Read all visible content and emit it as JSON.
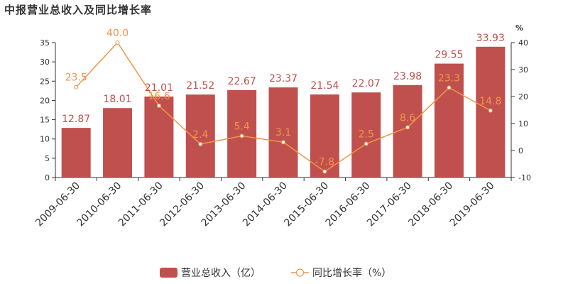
{
  "chart_data": {
    "type": "bar",
    "title": "中报营业总收入及同比增长率",
    "categories": [
      "2009-06-30",
      "2010-06-30",
      "2011-06-30",
      "2012-06-30",
      "2013-06-30",
      "2014-06-30",
      "2015-06-30",
      "2016-06-30",
      "2017-06-30",
      "2018-06-30",
      "2019-06-30"
    ],
    "series": [
      {
        "name": "营业总收入（亿）",
        "type": "bar",
        "axis": "left",
        "color": "#c0504d",
        "values": [
          12.87,
          18.01,
          21.01,
          21.52,
          22.67,
          23.37,
          21.54,
          22.07,
          23.98,
          29.55,
          33.93
        ]
      },
      {
        "name": "同比增长率（%）",
        "type": "line",
        "axis": "right",
        "color": "#f0954b",
        "values": [
          23.5,
          40.0,
          16.6,
          2.4,
          5.4,
          3.1,
          -7.8,
          2.5,
          8.6,
          23.3,
          14.8
        ]
      }
    ],
    "y_left": {
      "min": 0,
      "max": 35,
      "ticks": [
        0,
        5,
        10,
        15,
        20,
        25,
        30,
        35
      ]
    },
    "y_right": {
      "min": -10,
      "max": 40,
      "ticks": [
        -10,
        0,
        10,
        20,
        30,
        40
      ],
      "label": "%"
    },
    "label_texts": {
      "bars": [
        "12.87",
        "18.01",
        "21.01",
        "21.52",
        "22.67",
        "23.37",
        "21.54",
        "22.07",
        "23.98",
        "29.55",
        "33.93"
      ],
      "line": [
        "23.5",
        "40.0",
        "16.6",
        "2.4",
        "5.4",
        "3.1",
        "-7.8",
        "2.5",
        "8.6",
        "23.3",
        "14.8"
      ]
    },
    "grid": false,
    "legend_position": "bottom-center"
  },
  "colors": {
    "bar": "#c0504d",
    "line": "#f0954b",
    "bar_label": "#c0504d",
    "line_label": "#f0954b"
  }
}
